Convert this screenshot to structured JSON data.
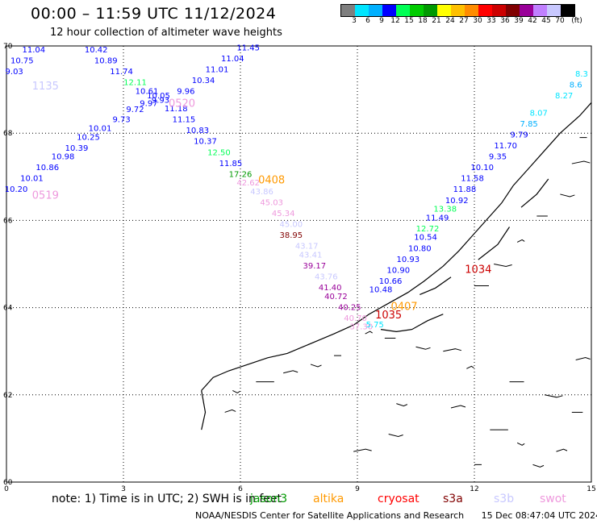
{
  "header": {
    "title": "00:00 – 11:59 UTC 11/12/2024",
    "subtitle": "12 hour collection of altimeter wave heights"
  },
  "color_scale": {
    "labels": [
      "3",
      "6",
      "9",
      "12",
      "15",
      "18",
      "21",
      "24",
      "27",
      "30",
      "33",
      "36",
      "39",
      "42",
      "45",
      "70",
      "(ft)"
    ],
    "colors": [
      "#7f7f7f",
      "#00e5ff",
      "#00b0ff",
      "#0000ff",
      "#00ff55",
      "#00cc00",
      "#009900",
      "#ffff00",
      "#ffc000",
      "#ff8c00",
      "#ff0000",
      "#cc0000",
      "#800000",
      "#990099",
      "#c080ff",
      "#c8c8ff",
      "#000000"
    ]
  },
  "axes": {
    "y_ticks": [
      "70",
      "68",
      "66",
      "64",
      "62",
      "60"
    ],
    "x_ticks": [
      "0",
      "3",
      "6",
      "9",
      "12",
      "15"
    ]
  },
  "chart_data": {
    "type": "map",
    "lon_range": [
      0,
      15
    ],
    "lat_range": [
      60,
      70
    ],
    "grid": true,
    "pass_labels": [
      {
        "text": "1135",
        "lon": 1.0,
        "lat": 69.0,
        "color": "#c8c8ff"
      },
      {
        "text": "0520",
        "lon": 4.5,
        "lat": 68.6,
        "color": "#ee99dd"
      },
      {
        "text": "0408",
        "lon": 6.8,
        "lat": 66.85,
        "color": "#ff9900"
      },
      {
        "text": "0519",
        "lon": 1.0,
        "lat": 66.5,
        "color": "#ee99dd"
      },
      {
        "text": "1034",
        "lon": 12.1,
        "lat": 64.8,
        "color": "#cc0000"
      },
      {
        "text": "1035",
        "lon": 9.8,
        "lat": 63.75,
        "color": "#cc0000"
      },
      {
        "text": "0407",
        "lon": 10.2,
        "lat": 63.95,
        "color": "#ff9900"
      }
    ],
    "observations": [
      {
        "v": "11.04",
        "lon": 0.7,
        "lat": 69.85,
        "c": "#0000ff"
      },
      {
        "v": "10.75",
        "lon": 0.4,
        "lat": 69.6,
        "c": "#0000ff"
      },
      {
        "v": "9.03",
        "lon": 0.2,
        "lat": 69.35,
        "c": "#0000ff"
      },
      {
        "v": "10.42",
        "lon": 2.3,
        "lat": 69.85,
        "c": "#0000ff"
      },
      {
        "v": "10.89",
        "lon": 2.55,
        "lat": 69.6,
        "c": "#0000ff"
      },
      {
        "v": "11.74",
        "lon": 2.95,
        "lat": 69.35,
        "c": "#0000ff"
      },
      {
        "v": "12.11",
        "lon": 3.3,
        "lat": 69.1,
        "c": "#00ff55"
      },
      {
        "v": "10.61",
        "lon": 3.6,
        "lat": 68.9,
        "c": "#0000ff"
      },
      {
        "v": "10.05",
        "lon": 3.9,
        "lat": 68.8,
        "c": "#0000ff"
      },
      {
        "v": "9.93",
        "lon": 3.95,
        "lat": 68.7,
        "c": "#0000ff"
      },
      {
        "v": "9.97",
        "lon": 3.65,
        "lat": 68.62,
        "c": "#0000ff"
      },
      {
        "v": "9.72",
        "lon": 3.3,
        "lat": 68.48,
        "c": "#0000ff"
      },
      {
        "v": "9.73",
        "lon": 2.95,
        "lat": 68.25,
        "c": "#0000ff"
      },
      {
        "v": "10.01",
        "lon": 2.4,
        "lat": 68.05,
        "c": "#0000ff"
      },
      {
        "v": "10.25",
        "lon": 2.1,
        "lat": 67.85,
        "c": "#0000ff"
      },
      {
        "v": "10.39",
        "lon": 1.8,
        "lat": 67.6,
        "c": "#0000ff"
      },
      {
        "v": "10.98",
        "lon": 1.45,
        "lat": 67.4,
        "c": "#0000ff"
      },
      {
        "v": "10.86",
        "lon": 1.05,
        "lat": 67.15,
        "c": "#0000ff"
      },
      {
        "v": "10.01",
        "lon": 0.65,
        "lat": 66.9,
        "c": "#0000ff"
      },
      {
        "v": "10.20",
        "lon": 0.25,
        "lat": 66.65,
        "c": "#0000ff"
      },
      {
        "v": "11.45",
        "lon": 6.2,
        "lat": 69.9,
        "c": "#0000ff"
      },
      {
        "v": "11.04",
        "lon": 5.8,
        "lat": 69.65,
        "c": "#0000ff"
      },
      {
        "v": "11.01",
        "lon": 5.4,
        "lat": 69.4,
        "c": "#0000ff"
      },
      {
        "v": "10.34",
        "lon": 5.05,
        "lat": 69.15,
        "c": "#0000ff"
      },
      {
        "v": "9.96",
        "lon": 4.6,
        "lat": 68.9,
        "c": "#0000ff"
      },
      {
        "v": "11.18",
        "lon": 4.35,
        "lat": 68.5,
        "c": "#0000ff"
      },
      {
        "v": "11.15",
        "lon": 4.55,
        "lat": 68.25,
        "c": "#0000ff"
      },
      {
        "v": "10.83",
        "lon": 4.9,
        "lat": 68.0,
        "c": "#0000ff"
      },
      {
        "v": "10.37",
        "lon": 5.1,
        "lat": 67.75,
        "c": "#0000ff"
      },
      {
        "v": "12.50",
        "lon": 5.45,
        "lat": 67.5,
        "c": "#00ff55"
      },
      {
        "v": "11.85",
        "lon": 5.75,
        "lat": 67.25,
        "c": "#0000ff"
      },
      {
        "v": "17.26",
        "lon": 6.0,
        "lat": 67.0,
        "c": "#009900"
      },
      {
        "v": "42.62",
        "lon": 6.2,
        "lat": 66.8,
        "c": "#ee99dd"
      },
      {
        "v": "43.86",
        "lon": 6.55,
        "lat": 66.6,
        "c": "#c8c8ff"
      },
      {
        "v": "45.03",
        "lon": 6.8,
        "lat": 66.35,
        "c": "#ee99dd"
      },
      {
        "v": "45.34",
        "lon": 7.1,
        "lat": 66.1,
        "c": "#ee99dd"
      },
      {
        "v": "45.00",
        "lon": 7.3,
        "lat": 65.85,
        "c": "#c8c8ff"
      },
      {
        "v": "38.95",
        "lon": 7.3,
        "lat": 65.6,
        "c": "#800000"
      },
      {
        "v": "43.17",
        "lon": 7.7,
        "lat": 65.35,
        "c": "#c8c8ff"
      },
      {
        "v": "43.41",
        "lon": 7.8,
        "lat": 65.15,
        "c": "#c8c8ff"
      },
      {
        "v": "39.17",
        "lon": 7.9,
        "lat": 64.9,
        "c": "#990099"
      },
      {
        "v": "43.76",
        "lon": 8.2,
        "lat": 64.65,
        "c": "#c8c8ff"
      },
      {
        "v": "41.40",
        "lon": 8.3,
        "lat": 64.4,
        "c": "#990099"
      },
      {
        "v": "40.72",
        "lon": 8.45,
        "lat": 64.2,
        "c": "#990099"
      },
      {
        "v": "40.25",
        "lon": 8.8,
        "lat": 63.95,
        "c": "#990099"
      },
      {
        "v": "40.70",
        "lon": 8.95,
        "lat": 63.7,
        "c": "#ee99dd"
      },
      {
        "v": "37.30",
        "lon": 9.1,
        "lat": 63.5,
        "c": "#ee99dd"
      },
      {
        "v": "5.75",
        "lon": 9.45,
        "lat": 63.55,
        "c": "#00e5ff"
      },
      {
        "v": "10.48",
        "lon": 9.6,
        "lat": 64.35,
        "c": "#0000ff"
      },
      {
        "v": "10.66",
        "lon": 9.85,
        "lat": 64.55,
        "c": "#0000ff"
      },
      {
        "v": "10.90",
        "lon": 10.05,
        "lat": 64.8,
        "c": "#0000ff"
      },
      {
        "v": "10.93",
        "lon": 10.3,
        "lat": 65.05,
        "c": "#0000ff"
      },
      {
        "v": "10.80",
        "lon": 10.6,
        "lat": 65.3,
        "c": "#0000ff"
      },
      {
        "v": "10.54",
        "lon": 10.75,
        "lat": 65.55,
        "c": "#0000ff"
      },
      {
        "v": "12.72",
        "lon": 10.8,
        "lat": 65.75,
        "c": "#00ff55"
      },
      {
        "v": "11.49",
        "lon": 11.05,
        "lat": 66.0,
        "c": "#0000ff"
      },
      {
        "v": "13.38",
        "lon": 11.25,
        "lat": 66.2,
        "c": "#00ff55"
      },
      {
        "v": "10.92",
        "lon": 11.55,
        "lat": 66.4,
        "c": "#0000ff"
      },
      {
        "v": "11.88",
        "lon": 11.75,
        "lat": 66.65,
        "c": "#0000ff"
      },
      {
        "v": "11.58",
        "lon": 11.95,
        "lat": 66.9,
        "c": "#0000ff"
      },
      {
        "v": "10.10",
        "lon": 12.2,
        "lat": 67.15,
        "c": "#0000ff"
      },
      {
        "v": "9.35",
        "lon": 12.6,
        "lat": 67.4,
        "c": "#0000ff"
      },
      {
        "v": "11.70",
        "lon": 12.8,
        "lat": 67.65,
        "c": "#0000ff"
      },
      {
        "v": "9.79",
        "lon": 13.15,
        "lat": 67.9,
        "c": "#0000ff"
      },
      {
        "v": "7.85",
        "lon": 13.4,
        "lat": 68.15,
        "c": "#00b0ff"
      },
      {
        "v": "8.07",
        "lon": 13.65,
        "lat": 68.4,
        "c": "#00e5ff"
      },
      {
        "v": "8.27",
        "lon": 14.3,
        "lat": 68.8,
        "c": "#00e5ff"
      },
      {
        "v": "8.6",
        "lon": 14.6,
        "lat": 69.05,
        "c": "#00b0ff"
      },
      {
        "v": "8.3",
        "lon": 14.75,
        "lat": 69.3,
        "c": "#00e5ff"
      }
    ]
  },
  "note": {
    "text": "note: 1) Time is in UTC; 2) SWH is in feet"
  },
  "legend": {
    "items": [
      {
        "label": "jason3",
        "color": "#009900"
      },
      {
        "label": "altika",
        "color": "#ff9900"
      },
      {
        "label": "cryosat",
        "color": "#ff0000"
      },
      {
        "label": "s3a",
        "color": "#800000"
      },
      {
        "label": "s3b",
        "color": "#c8c8ff"
      },
      {
        "label": "swot",
        "color": "#ee99dd"
      }
    ]
  },
  "footer": {
    "credit": "NOAA/NESDIS Center for Satellite Applications and Research",
    "date": "15 Dec 08:47:04 UTC 2024"
  }
}
